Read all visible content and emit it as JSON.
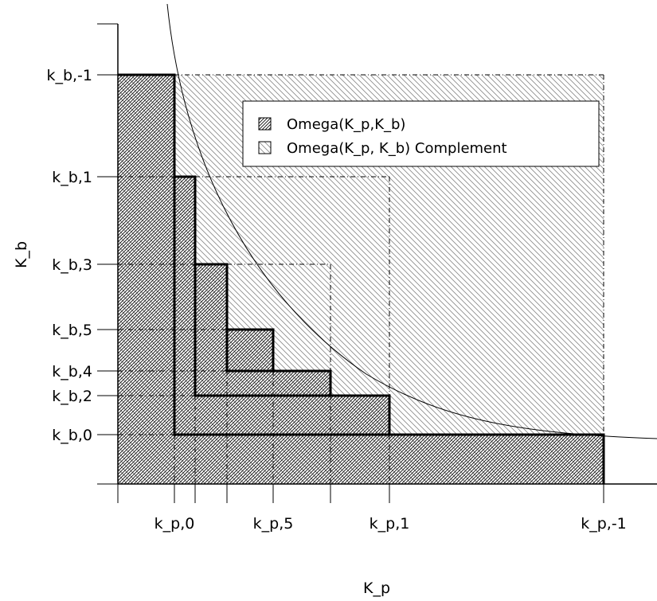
{
  "figure": {
    "x_axis_label": "K_p",
    "y_axis_label": "K_b",
    "x_ticks": [
      {
        "key": "kp0",
        "label": "k_p,0"
      },
      {
        "key": "kp5",
        "label": "k_p,5"
      },
      {
        "key": "kp1",
        "label": "k_p,1"
      },
      {
        "key": "kpm1",
        "label": "k_p,-1"
      }
    ],
    "y_ticks": [
      {
        "key": "kbm1",
        "label": "k_b,-1"
      },
      {
        "key": "kb1",
        "label": "k_b,1"
      },
      {
        "key": "kb3",
        "label": "k_b,3"
      },
      {
        "key": "kb5",
        "label": "k_b,5"
      },
      {
        "key": "kb4",
        "label": "k_b,4"
      },
      {
        "key": "kb2",
        "label": "k_b,2"
      },
      {
        "key": "kb0",
        "label": "k_b,0"
      }
    ],
    "legend": [
      {
        "key": "omega",
        "label": "Omega(K_p,K_b)",
        "pattern": "dense-hatch"
      },
      {
        "key": "complement",
        "label": "Omega(K_p, K_b) Complement",
        "pattern": "sparse-hatch"
      }
    ],
    "colors": {
      "ink": "#000000",
      "background": "#ffffff"
    }
  }
}
